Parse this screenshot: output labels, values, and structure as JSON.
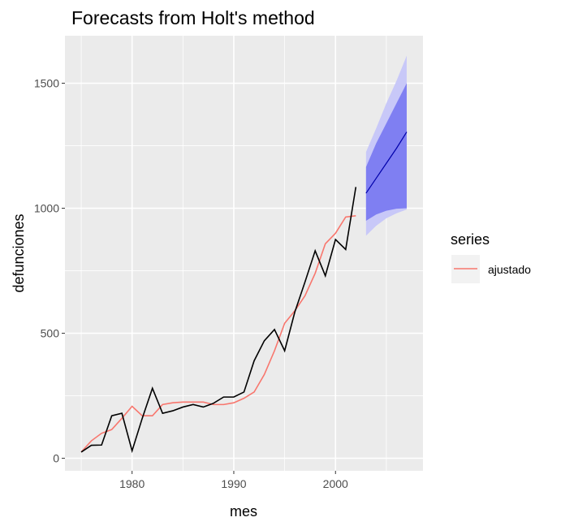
{
  "chart_data": {
    "type": "line",
    "title": "Forecasts from Holt's method",
    "xlabel": "mes",
    "ylabel": "defunciones",
    "xlim": [
      1973.4,
      2008.6
    ],
    "ylim": [
      -50,
      1690
    ],
    "x_ticks": [
      1980,
      1990,
      2000
    ],
    "y_ticks": [
      0,
      500,
      1000,
      1500
    ],
    "x_tick_labels": [
      "1980",
      "1990",
      "2000"
    ],
    "y_tick_labels": [
      "0",
      "500",
      "1000",
      "1500"
    ],
    "grid": true,
    "legend": {
      "title": "series",
      "position": "right",
      "entries": [
        "ajustado"
      ]
    },
    "colors": {
      "observed": "#000000",
      "fitted": "#f8766d",
      "forecast_line": "#0000aa",
      "pi80": "#7f7ff2",
      "pi95": "#c8c8f8",
      "panel": "#ebebeb",
      "grid": "#ffffff"
    },
    "series": [
      {
        "name": "observed",
        "x": [
          1975,
          1976,
          1977,
          1978,
          1979,
          1980,
          1981,
          1982,
          1983,
          1984,
          1985,
          1986,
          1987,
          1988,
          1989,
          1990,
          1991,
          1992,
          1993,
          1994,
          1995,
          1996,
          1997,
          1998,
          1999,
          2000,
          2001,
          2002
        ],
        "values": [
          25,
          52,
          53,
          170,
          180,
          30,
          160,
          280,
          180,
          190,
          205,
          215,
          205,
          220,
          245,
          245,
          265,
          390,
          470,
          515,
          430,
          585,
          705,
          830,
          730,
          875,
          835,
          1085
        ]
      },
      {
        "name": "ajustado",
        "x": [
          1975,
          1976,
          1977,
          1978,
          1979,
          1980,
          1981,
          1982,
          1983,
          1984,
          1985,
          1986,
          1987,
          1988,
          1989,
          1990,
          1991,
          1992,
          1993,
          1994,
          1995,
          1996,
          1997,
          1998,
          1999,
          2000,
          2001,
          2002
        ],
        "values": [
          25,
          70,
          100,
          115,
          160,
          208,
          170,
          170,
          215,
          222,
          225,
          225,
          225,
          215,
          215,
          222,
          240,
          265,
          335,
          430,
          540,
          590,
          650,
          740,
          858,
          900,
          965,
          970
        ]
      },
      {
        "name": "forecast",
        "x": [
          2003,
          2004,
          2005,
          2006,
          2007
        ],
        "values": [
          1060,
          1120,
          1180,
          1240,
          1305
        ],
        "lo80": [
          950,
          975,
          990,
          998,
          1000
        ],
        "hi80": [
          1165,
          1260,
          1340,
          1420,
          1500
        ],
        "lo95": [
          890,
          930,
          960,
          980,
          995
        ],
        "hi95": [
          1225,
          1320,
          1420,
          1510,
          1610
        ]
      }
    ]
  }
}
